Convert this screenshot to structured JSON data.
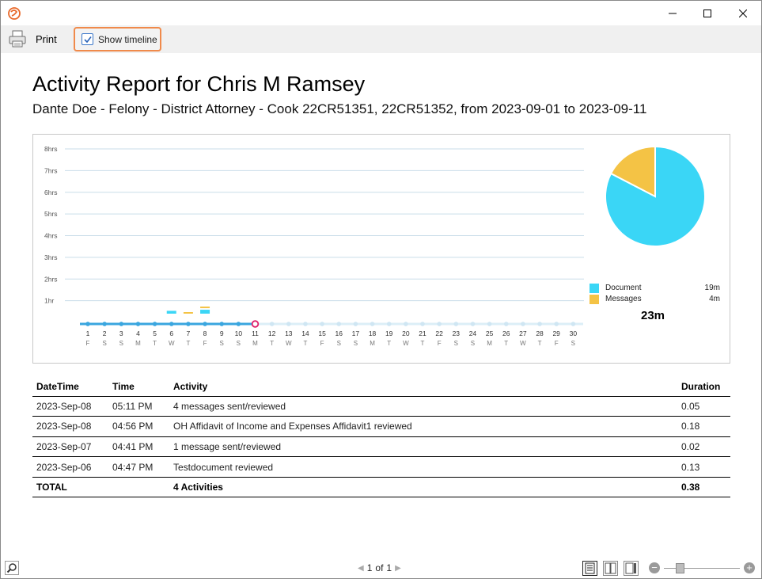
{
  "toolbar": {
    "print_label": "Print",
    "show_timeline_label": "Show timeline",
    "show_timeline_checked": true
  },
  "report": {
    "title": "Activity Report for Chris M Ramsey",
    "subtitle": "Dante Doe - Felony - District Attorney - Cook 22CR51351, 22CR51352, from 2023-09-01 to 2023-09-11"
  },
  "chart_data": [
    {
      "type": "bar",
      "description_role": "timeline",
      "y_ticks": [
        "8hrs",
        "7hrs",
        "6hrs",
        "5hrs",
        "4hrs",
        "3hrs",
        "2hrs",
        "1hr"
      ],
      "ylim": [
        0,
        8
      ],
      "days": [
        "1",
        "2",
        "3",
        "4",
        "5",
        "6",
        "7",
        "8",
        "9",
        "10",
        "11",
        "12",
        "13",
        "14",
        "15",
        "16",
        "17",
        "18",
        "19",
        "20",
        "21",
        "22",
        "23",
        "24",
        "25",
        "26",
        "27",
        "28",
        "29",
        "30"
      ],
      "weekdays": [
        "F",
        "S",
        "S",
        "M",
        "T",
        "W",
        "T",
        "F",
        "S",
        "S",
        "M",
        "T",
        "W",
        "T",
        "F",
        "S",
        "S",
        "M",
        "T",
        "W",
        "T",
        "F",
        "S",
        "S",
        "M",
        "T",
        "W",
        "T",
        "F",
        "S"
      ],
      "active_through_day": 11,
      "current_day": 11,
      "series": [
        {
          "name": "Document",
          "color": "#3ad6f6",
          "values": {
            "6": 0.13,
            "8": 0.18
          }
        },
        {
          "name": "Messages",
          "color": "#f4c345",
          "values": {
            "7": 0.02,
            "8": 0.05
          }
        }
      ]
    },
    {
      "type": "pie",
      "labels": [
        "Document",
        "Messages"
      ],
      "values": [
        19,
        4
      ],
      "value_labels": [
        "19m",
        "4m"
      ],
      "colors": [
        "#3ad6f6",
        "#f4c345"
      ],
      "total_label": "23m"
    }
  ],
  "table": {
    "headers": {
      "date": "DateTime",
      "time": "Time",
      "activity": "Activity",
      "duration": "Duration"
    },
    "rows": [
      {
        "date": "2023-Sep-08",
        "time": "05:11 PM",
        "activity": "4 messages sent/reviewed",
        "duration": "0.05"
      },
      {
        "date": "2023-Sep-08",
        "time": "04:56 PM",
        "activity": "OH Affidavit of Income and Expenses Affidavit1 reviewed",
        "duration": "0.18"
      },
      {
        "date": "2023-Sep-07",
        "time": "04:41 PM",
        "activity": "1 message sent/reviewed",
        "duration": "0.02"
      },
      {
        "date": "2023-Sep-06",
        "time": "04:47 PM",
        "activity": "Testdocument reviewed",
        "duration": "0.13"
      }
    ],
    "total": {
      "label": "TOTAL",
      "activities": "4 Activities",
      "duration": "0.38"
    }
  },
  "pager": {
    "current": "1",
    "of": "of",
    "total": "1"
  }
}
